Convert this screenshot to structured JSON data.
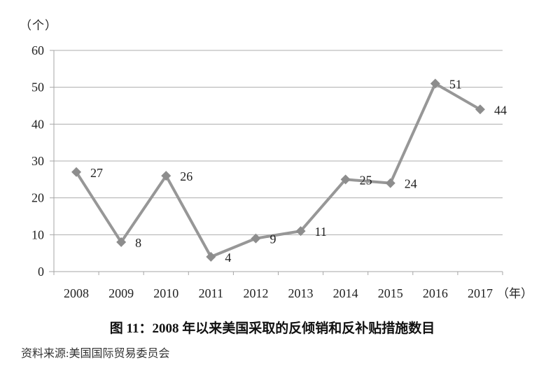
{
  "chart_data": {
    "type": "line",
    "title": "图 11：2008 年以来美国采取的反倾销和反补贴措施数目",
    "source": "资料来源:美国国际贸易委员会",
    "y_axis_unit": "（个）",
    "x_axis_unit": "（年）",
    "categories": [
      "2008",
      "2009",
      "2010",
      "2011",
      "2012",
      "2013",
      "2014",
      "2015",
      "2016",
      "2017"
    ],
    "values": [
      27,
      8,
      26,
      4,
      9,
      11,
      25,
      24,
      51,
      44
    ],
    "ylim": [
      0,
      60
    ],
    "y_ticks": [
      0,
      10,
      20,
      30,
      40,
      50,
      60
    ],
    "grid": "horizontal",
    "legend": "none",
    "marker": "diamond",
    "data_labels": true,
    "colors": {
      "line": "#979797",
      "marker": "#8d8d8d",
      "grid": "#adadad",
      "axis": "#a6a6a6",
      "text": "#222222"
    }
  }
}
